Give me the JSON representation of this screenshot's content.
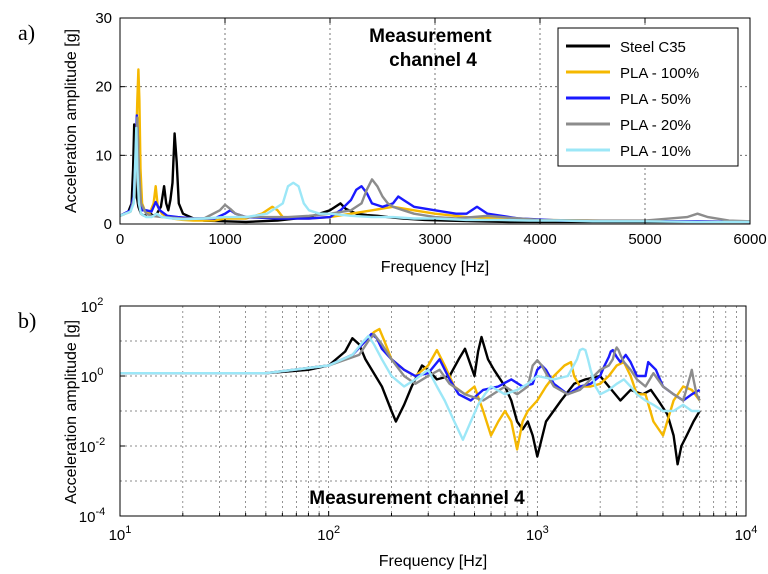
{
  "panels": [
    {
      "panel_label": "a)",
      "annotation": "Measurement\nchannel 4",
      "xlabel": "Frequency [Hz]",
      "ylabel": "Acceleration amplitude [g]"
    },
    {
      "panel_label": "b)",
      "annotation": "Measurement channel 4",
      "xlabel": "Frequency [Hz]",
      "ylabel": "Acceleration amplitude [g]"
    }
  ],
  "chart_data": [
    {
      "type": "line",
      "xscale": "linear",
      "yscale": "linear",
      "xlim": [
        0,
        6000
      ],
      "ylim": [
        0,
        30
      ],
      "xticks": [
        0,
        1000,
        2000,
        3000,
        4000,
        5000,
        6000
      ],
      "yticks": [
        0,
        10,
        20,
        30
      ],
      "grid": true,
      "legend": "top-right",
      "series": [
        {
          "name": "Steel C35",
          "color": "#000000",
          "x": [
            0,
            80,
            110,
            125,
            135,
            145,
            160,
            175,
            200,
            230,
            260,
            290,
            320,
            350,
            390,
            420,
            440,
            460,
            480,
            500,
            520,
            540,
            560,
            600,
            700,
            800,
            1000,
            1200,
            1500,
            1800,
            2000,
            2100,
            2150,
            2250,
            2350,
            2450,
            2550,
            2700,
            2900,
            3100,
            3400,
            3700,
            4000,
            4500,
            5000,
            5500,
            6000
          ],
          "y": [
            1.2,
            1.8,
            3,
            8,
            14.5,
            9,
            4,
            2.5,
            1.5,
            1.2,
            1.5,
            1.5,
            1.2,
            1.5,
            2.5,
            5.5,
            3,
            2,
            3.5,
            6,
            13.2,
            9,
            3,
            1.5,
            0.8,
            0.5,
            0.4,
            0.3,
            0.5,
            1,
            2,
            3,
            2.2,
            1.5,
            1.3,
            1.2,
            1,
            0.8,
            0.6,
            0.5,
            0.4,
            0.3,
            0.3,
            0.3,
            0.3,
            0.3,
            0.3
          ]
        },
        {
          "name": "PLA - 100%",
          "color": "#f5b800",
          "x": [
            0,
            100,
            130,
            150,
            165,
            175,
            185,
            195,
            210,
            240,
            280,
            320,
            340,
            360,
            400,
            450,
            500,
            600,
            700,
            800,
            900,
            1000,
            1200,
            1350,
            1450,
            1500,
            1550,
            1700,
            1800,
            2000,
            2200,
            2400,
            2600,
            2800,
            3000,
            3300,
            3600,
            4000,
            4500,
            5000,
            5500,
            6000
          ],
          "y": [
            1.2,
            1.8,
            3.5,
            10,
            18,
            22.5,
            18,
            8,
            3,
            1.8,
            1.5,
            3,
            5.5,
            2.5,
            1.5,
            1,
            0.8,
            0.6,
            0.5,
            0.5,
            0.5,
            0.8,
            0.8,
            1.5,
            2.5,
            2,
            1,
            0.8,
            0.8,
            1,
            1.5,
            2,
            2.5,
            2,
            1.5,
            1,
            0.8,
            0.6,
            0.5,
            0.4,
            0.4,
            0.3
          ]
        },
        {
          "name": "PLA - 50%",
          "color": "#1a1aff",
          "x": [
            0,
            100,
            130,
            150,
            160,
            170,
            180,
            190,
            210,
            250,
            300,
            340,
            380,
            450,
            550,
            700,
            900,
            1000,
            1050,
            1100,
            1200,
            1500,
            1800,
            2000,
            2100,
            2200,
            2250,
            2300,
            2350,
            2400,
            2500,
            2600,
            2650,
            2700,
            2800,
            3000,
            3200,
            3300,
            3400,
            3500,
            3800,
            4200,
            5000,
            5500,
            6000
          ],
          "y": [
            1.2,
            2,
            4,
            10,
            15.8,
            13,
            6,
            3,
            2,
            2,
            1.8,
            3.2,
            2,
            1.2,
            1,
            0.8,
            0.8,
            1.5,
            2,
            1.5,
            1,
            0.8,
            0.8,
            1,
            2,
            3.5,
            5,
            5.5,
            4.5,
            3,
            2.5,
            3,
            4,
            3.5,
            2.5,
            2,
            1.5,
            1.5,
            2.5,
            1.5,
            0.8,
            0.5,
            0.4,
            0.4,
            0.3
          ]
        },
        {
          "name": "PLA - 20%",
          "color": "#8c8c8c",
          "x": [
            0,
            100,
            140,
            155,
            165,
            180,
            200,
            250,
            300,
            400,
            600,
            800,
            950,
            1000,
            1050,
            1100,
            1200,
            1400,
            1600,
            1800,
            2000,
            2200,
            2300,
            2350,
            2400,
            2450,
            2500,
            2550,
            2600,
            2700,
            2800,
            3000,
            3200,
            3500,
            3800,
            4000,
            4500,
            5000,
            5400,
            5500,
            5600,
            5800,
            6000
          ],
          "y": [
            1.2,
            1.8,
            4,
            10,
            15.5,
            8,
            3,
            1.5,
            1.2,
            1,
            0.8,
            0.8,
            2,
            2.8,
            2.2,
            1.5,
            1,
            1,
            1,
            1.2,
            1.5,
            2,
            3,
            5,
            6.5,
            5.5,
            4,
            3,
            2.5,
            2,
            1.5,
            1,
            0.8,
            1.2,
            0.8,
            0.6,
            0.5,
            0.5,
            1,
            1.5,
            1,
            0.5,
            0.4
          ]
        },
        {
          "name": "PLA - 10%",
          "color": "#9ce7f7",
          "x": [
            0,
            100,
            130,
            145,
            155,
            165,
            180,
            200,
            250,
            300,
            350,
            400,
            500,
            600,
            800,
            1000,
            1200,
            1400,
            1550,
            1600,
            1650,
            1700,
            1750,
            1800,
            1900,
            2000,
            2200,
            2400,
            2600,
            2800,
            3000,
            3300,
            3600,
            3900,
            4200,
            4500,
            5000,
            5500,
            6000
          ],
          "y": [
            1.2,
            1.8,
            3,
            9,
            14,
            8,
            3,
            1.5,
            1,
            1,
            1.5,
            1,
            0.8,
            0.7,
            0.8,
            1,
            1,
            1.5,
            3,
            5.5,
            6,
            5.5,
            3,
            2,
            1.5,
            1.5,
            1.2,
            1,
            1,
            0.8,
            0.8,
            0.6,
            0.6,
            0.5,
            0.5,
            0.4,
            0.4,
            0.3,
            0.3
          ]
        }
      ]
    },
    {
      "type": "line",
      "xscale": "log",
      "yscale": "log",
      "xlim": [
        10,
        10000
      ],
      "ylim": [
        0.0001,
        100
      ],
      "xticks": [
        10,
        100,
        1000,
        10000
      ],
      "xtick_labels": [
        "10^1",
        "10^2",
        "10^3",
        "10^4"
      ],
      "yticks": [
        0.0001,
        0.01,
        1,
        100
      ],
      "ytick_labels": [
        "10^-4",
        "10^-2",
        "10^0",
        "10^2"
      ],
      "grid": true,
      "series": [
        {
          "name": "Steel C35",
          "color": "#000000",
          "x": [
            10,
            50,
            80,
            100,
            120,
            130,
            140,
            150,
            180,
            200,
            210,
            230,
            250,
            280,
            300,
            330,
            380,
            420,
            450,
            480,
            500,
            520,
            540,
            580,
            620,
            700,
            750,
            800,
            850,
            900,
            950,
            1000,
            1100,
            1300,
            1500,
            1700,
            2000,
            2200,
            2500,
            2800,
            3200,
            3500,
            3800,
            4200,
            4500,
            4700,
            4900,
            5200,
            5600,
            6000
          ],
          "y": [
            1.2,
            1.2,
            1.5,
            2,
            5,
            12,
            8,
            3,
            0.5,
            0.1,
            0.05,
            0.15,
            0.5,
            2,
            1.5,
            0.8,
            1,
            3,
            6,
            2,
            1,
            5,
            13,
            3,
            1.5,
            0.5,
            0.2,
            0.05,
            0.03,
            0.05,
            0.02,
            0.005,
            0.05,
            0.2,
            0.6,
            0.8,
            1,
            0.5,
            0.2,
            0.4,
            0.3,
            0.4,
            0.2,
            0.08,
            0.02,
            0.003,
            0.01,
            0.02,
            0.05,
            0.1
          ]
        },
        {
          "name": "PLA - 100%",
          "color": "#f5b800",
          "x": [
            10,
            50,
            100,
            130,
            150,
            165,
            175,
            185,
            200,
            230,
            260,
            300,
            330,
            360,
            400,
            450,
            500,
            550,
            600,
            650,
            700,
            750,
            800,
            850,
            900,
            1000,
            1100,
            1200,
            1350,
            1450,
            1500,
            1600,
            1800,
            2000,
            2200,
            2400,
            2600,
            2800,
            3000,
            3300,
            3600,
            4000,
            4500,
            5000,
            5500,
            6000
          ],
          "y": [
            1.2,
            1.2,
            2,
            4,
            10,
            18,
            22,
            10,
            3,
            1.5,
            1,
            2,
            5.5,
            2,
            0.5,
            0.3,
            0.5,
            0.1,
            0.02,
            0.05,
            0.1,
            0.05,
            0.008,
            0.05,
            0.1,
            0.2,
            0.5,
            1,
            2,
            2.5,
            1,
            0.5,
            0.5,
            0.6,
            1,
            2,
            2.5,
            1,
            0.3,
            0.3,
            0.05,
            0.02,
            0.2,
            0.5,
            0.4,
            0.2
          ]
        },
        {
          "name": "PLA - 50%",
          "color": "#1a1aff",
          "x": [
            10,
            50,
            100,
            130,
            150,
            160,
            170,
            180,
            200,
            230,
            260,
            300,
            340,
            380,
            420,
            480,
            550,
            650,
            750,
            850,
            950,
            1000,
            1050,
            1100,
            1200,
            1400,
            1600,
            1800,
            2000,
            2100,
            2200,
            2250,
            2300,
            2400,
            2500,
            2650,
            2800,
            3000,
            3300,
            3400,
            3700,
            4000,
            4500,
            5000,
            5500,
            6000
          ],
          "y": [
            1.2,
            1.2,
            2,
            4,
            10,
            15.8,
            12,
            6,
            3,
            1.5,
            1,
            1.2,
            3,
            0.8,
            0.3,
            0.2,
            0.4,
            0.5,
            0.8,
            0.5,
            0.6,
            1.5,
            2,
            1.5,
            0.6,
            0.3,
            0.5,
            0.6,
            1,
            2,
            3.5,
            5,
            5.5,
            3.5,
            2.5,
            4,
            2.5,
            1,
            1,
            2.5,
            1.5,
            0.5,
            0.3,
            0.2,
            0.3,
            0.4
          ]
        },
        {
          "name": "PLA - 20%",
          "color": "#8c8c8c",
          "x": [
            10,
            50,
            100,
            140,
            155,
            165,
            180,
            200,
            230,
            260,
            300,
            340,
            380,
            450,
            550,
            700,
            800,
            900,
            950,
            1000,
            1050,
            1100,
            1200,
            1400,
            1600,
            1800,
            2000,
            2200,
            2300,
            2350,
            2400,
            2450,
            2500,
            2600,
            2800,
            3000,
            3300,
            3600,
            4000,
            4500,
            5000,
            5400,
            5500,
            5600,
            5800,
            6000
          ],
          "y": [
            1.2,
            1.2,
            2,
            4,
            10,
            15.5,
            8,
            3,
            1,
            0.6,
            1,
            1.5,
            0.6,
            0.3,
            0.2,
            0.5,
            0.3,
            0.5,
            2,
            2.8,
            2,
            1.2,
            0.5,
            0.3,
            0.4,
            0.8,
            1.5,
            2,
            3,
            5,
            6.5,
            5.5,
            4,
            2.5,
            1.5,
            0.8,
            0.5,
            1.2,
            0.5,
            0.3,
            0.2,
            1,
            1.5,
            0.8,
            0.3,
            0.2
          ]
        },
        {
          "name": "PLA - 10%",
          "color": "#9ce7f7",
          "x": [
            10,
            50,
            100,
            130,
            145,
            155,
            165,
            180,
            200,
            230,
            260,
            300,
            330,
            360,
            400,
            440,
            480,
            520,
            560,
            600,
            700,
            800,
            900,
            1000,
            1200,
            1400,
            1550,
            1600,
            1650,
            1700,
            1750,
            1800,
            1900,
            2000,
            2200,
            2400,
            2600,
            2800,
            3000,
            3300,
            3600,
            4000,
            4500,
            5000,
            5500,
            6000
          ],
          "y": [
            1.2,
            1.2,
            2,
            4,
            9,
            14,
            8,
            3,
            1,
            0.5,
            0.8,
            1.5,
            0.5,
            0.2,
            0.05,
            0.015,
            0.05,
            0.15,
            0.3,
            0.5,
            0.3,
            0.4,
            0.6,
            1,
            0.8,
            1,
            3,
            5.5,
            6,
            5.5,
            3,
            1.5,
            0.5,
            0.3,
            0.4,
            0.6,
            0.8,
            0.5,
            0.3,
            0.2,
            0.15,
            0.1,
            0.1,
            0.15,
            0.1,
            0.1
          ]
        }
      ]
    }
  ]
}
